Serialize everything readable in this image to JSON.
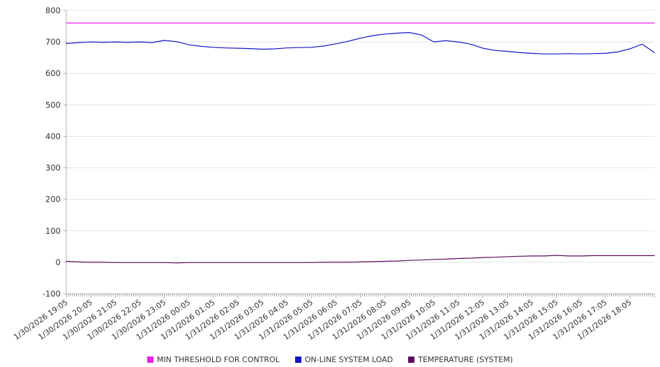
{
  "chart_data": {
    "type": "line",
    "title": "",
    "xlabel": "",
    "ylabel": "",
    "ylim": [
      -100,
      800
    ],
    "y_ticks": [
      800,
      700,
      600,
      500,
      400,
      300,
      200,
      100,
      0,
      -100
    ],
    "grid": "horizontal",
    "legend_position": "bottom-center",
    "x_span_minutes": 1440,
    "x_tick_labels": [
      "1/30/2026 19:05",
      "1/30/2026 20:05",
      "1/30/2026 21:05",
      "1/30/2026 22:05",
      "1/30/2026 23:05",
      "1/31/2026 00:05",
      "1/31/2026 01:05",
      "1/31/2026 02:05",
      "1/31/2026 03:05",
      "1/31/2026 04:05",
      "1/31/2026 05:05",
      "1/31/2026 06:05",
      "1/31/2026 07:05",
      "1/31/2026 08:05",
      "1/31/2026 09:05",
      "1/31/2026 10:05",
      "1/31/2026 11:05",
      "1/31/2026 12:05",
      "1/31/2026 13:05",
      "1/31/2026 14:05",
      "1/31/2026 15:05",
      "1/31/2026 16:05",
      "1/31/2026 17:05",
      "1/31/2026 18:05"
    ],
    "series": [
      {
        "name": "MIN THRESHOLD FOR CONTROL",
        "color": "#e81ee8",
        "points_min": [
          0,
          1440
        ],
        "values": [
          760,
          760
        ]
      },
      {
        "name": "ON-LINE SYSTEM LOAD",
        "color": "#1414c8",
        "step_min": 30,
        "values": [
          695,
          698,
          700,
          699,
          700,
          699,
          700,
          698,
          705,
          701,
          691,
          686,
          683,
          681,
          680,
          679,
          677,
          678,
          681,
          682,
          683,
          687,
          694,
          702,
          712,
          720,
          725,
          728,
          730,
          722,
          700,
          704,
          700,
          693,
          680,
          673,
          670,
          666,
          664,
          662,
          662,
          663,
          662,
          663,
          664,
          668,
          678,
          693,
          666
        ]
      },
      {
        "name": "TEMPERATURE (SYSTEM)",
        "color": "#5c0a5c",
        "step_min": 30,
        "values": [
          3,
          1,
          0,
          0,
          -1,
          -1,
          -1,
          -1,
          -1,
          -2,
          -1,
          -1,
          -1,
          -1,
          -1,
          -1,
          -1,
          -1,
          -1,
          -1,
          -1,
          0,
          0,
          0,
          1,
          2,
          3,
          4,
          6,
          7,
          9,
          10,
          12,
          13,
          15,
          16,
          18,
          19,
          20,
          20,
          22,
          20,
          20,
          21,
          21,
          21,
          21,
          21,
          21
        ]
      }
    ]
  }
}
